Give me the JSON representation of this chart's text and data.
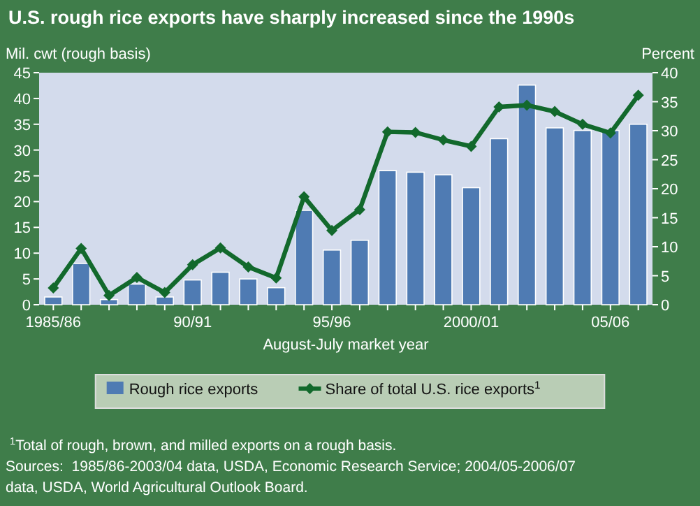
{
  "chart_data": {
    "type": "bar",
    "title": "U.S. rough rice exports have sharply increased since the 1990s",
    "ylabel": "Mil. cwt (rough basis)",
    "y2label": "Percent",
    "xlabel": "August-July market year",
    "categories": [
      "1985/86",
      null,
      null,
      null,
      null,
      "90/91",
      null,
      null,
      null,
      null,
      "95/96",
      null,
      null,
      null,
      null,
      "2000/01",
      null,
      null,
      null,
      null,
      "05/06",
      null
    ],
    "series": [
      {
        "name": "Rough rice exports",
        "color": "#4f7bb3",
        "values": [
          1.5,
          8,
          1,
          4,
          1.5,
          4.8,
          6.3,
          5,
          3.3,
          18.3,
          10.6,
          12.5,
          26,
          25.7,
          25.2,
          22.7,
          32.2,
          42.6,
          34.3,
          33.8,
          33.8,
          35
        ]
      },
      {
        "name": "Share of total U.S. rice exports$^{1}$",
        "type": "line",
        "axis": "y2",
        "color": "#12692c",
        "marker": "diamond",
        "values": [
          2.9,
          9.7,
          1.6,
          4.7,
          2.1,
          6.9,
          9.8,
          6.5,
          4.6,
          18.6,
          12.8,
          16.4,
          29.8,
          29.7,
          28.4,
          27.3,
          34.1,
          34.4,
          33.3,
          31.1,
          29.6,
          36.1
        ]
      }
    ],
    "ylim": [
      0,
      45
    ],
    "yticks": [
      0,
      5,
      10,
      15,
      20,
      25,
      30,
      35,
      40,
      45
    ],
    "y2lim": [
      0,
      40
    ],
    "y2ticks": [
      0,
      5,
      10,
      15,
      20,
      25,
      30,
      35,
      40
    ],
    "legend": "bottom",
    "grid": false,
    "annotations": [
      "$^{1}$Total of rough, brown, and milled exports on a rough basis.",
      "Sources:  1985/86-2003/04 data, USDA, Economic Research Service; 2004/05-2006/07",
      "data, USDA, World Agricultural Outlook Board."
    ]
  }
}
